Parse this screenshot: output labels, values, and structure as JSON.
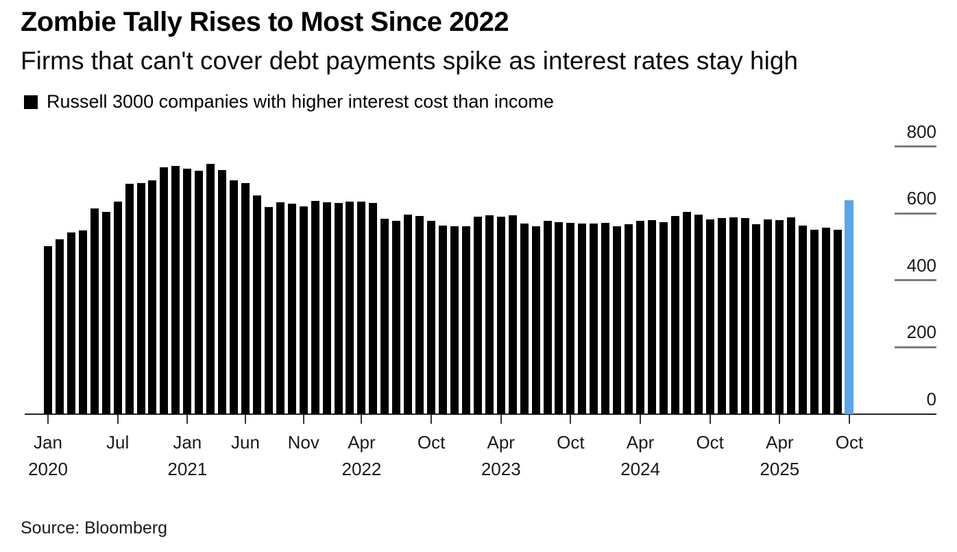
{
  "colors": {
    "background": "#ffffff",
    "bar": "#000000",
    "highlight": "#5AA5EB",
    "axis_line": "#222222",
    "x_tick": "#333333",
    "y_tick": "#7d7d7d",
    "text": "#000000",
    "axis_text": "#1a1a1a"
  },
  "chart_data": {
    "type": "bar",
    "title": "Zombie Tally Rises to Most Since 2022",
    "subtitle": "Firms that can't cover debt payments spike as interest rates stay high",
    "legend": [
      "Russell 3000 companies with higher interest cost than income"
    ],
    "legend_position": "top-left",
    "source": "Source: Bloomberg",
    "grid": false,
    "ylim": [
      0,
      800
    ],
    "yticks": [
      0,
      200,
      400,
      600,
      800
    ],
    "ytick_side": "right",
    "x": [
      "Jan 2020",
      "Feb 2020",
      "Mar 2020",
      "Apr 2020",
      "May 2020",
      "Jun 2020",
      "Jul 2020",
      "Aug 2020",
      "Sep 2020",
      "Oct 2020",
      "Nov 2020",
      "Dec 2020",
      "Jan 2021",
      "Feb 2021",
      "Mar 2021",
      "Apr 2021",
      "May 2021",
      "Jun 2021",
      "Jul 2021",
      "Aug 2021",
      "Sep 2021",
      "Oct 2021",
      "Nov 2021",
      "Dec 2021",
      "Jan 2022",
      "Feb 2022",
      "Mar 2022",
      "Apr 2022",
      "May 2022",
      "Jun 2022",
      "Jul 2022",
      "Aug 2022",
      "Sep 2022",
      "Oct 2022",
      "Nov 2022",
      "Dec 2022",
      "Jan 2023",
      "Feb 2023",
      "Mar 2023",
      "Apr 2023",
      "May 2023",
      "Jun 2023",
      "Jul 2023",
      "Aug 2023",
      "Sep 2023",
      "Oct 2023",
      "Nov 2023",
      "Dec 2023",
      "Jan 2024",
      "Feb 2024",
      "Mar 2024",
      "Apr 2024",
      "May 2024",
      "Jun 2024",
      "Jul 2024",
      "Aug 2024",
      "Sep 2024",
      "Oct 2024",
      "Nov 2024",
      "Dec 2024",
      "Jan 2025",
      "Feb 2025",
      "Mar 2025",
      "Apr 2025",
      "May 2025",
      "Jun 2025",
      "Jul 2025",
      "Aug 2025",
      "Sep 2025",
      "Oct 2025"
    ],
    "values": [
      502,
      522,
      543,
      550,
      615,
      604,
      636,
      688,
      690,
      699,
      738,
      742,
      733,
      728,
      748,
      730,
      699,
      690,
      654,
      619,
      634,
      628,
      621,
      637,
      633,
      630,
      636,
      636,
      631,
      584,
      577,
      596,
      593,
      577,
      564,
      562,
      562,
      589,
      595,
      590,
      595,
      570,
      562,
      577,
      573,
      572,
      570,
      570,
      572,
      562,
      567,
      577,
      580,
      574,
      593,
      604,
      596,
      582,
      586,
      588,
      586,
      568,
      582,
      580,
      588,
      563,
      551,
      558,
      552,
      640
    ],
    "highlight_index": 69,
    "xtick_labels": [
      {
        "index": 0,
        "month": "Jan",
        "year": "2020"
      },
      {
        "index": 6,
        "month": "Jul",
        "year": ""
      },
      {
        "index": 12,
        "month": "Jan",
        "year": "2021"
      },
      {
        "index": 17,
        "month": "Jun",
        "year": ""
      },
      {
        "index": 22,
        "month": "Nov",
        "year": ""
      },
      {
        "index": 27,
        "month": "Apr",
        "year": "2022"
      },
      {
        "index": 33,
        "month": "Oct",
        "year": ""
      },
      {
        "index": 39,
        "month": "Apr",
        "year": "2023"
      },
      {
        "index": 45,
        "month": "Oct",
        "year": ""
      },
      {
        "index": 51,
        "month": "Apr",
        "year": "2024"
      },
      {
        "index": 57,
        "month": "Oct",
        "year": ""
      },
      {
        "index": 63,
        "month": "Apr",
        "year": "2025"
      },
      {
        "index": 69,
        "month": "Oct",
        "year": ""
      }
    ]
  }
}
